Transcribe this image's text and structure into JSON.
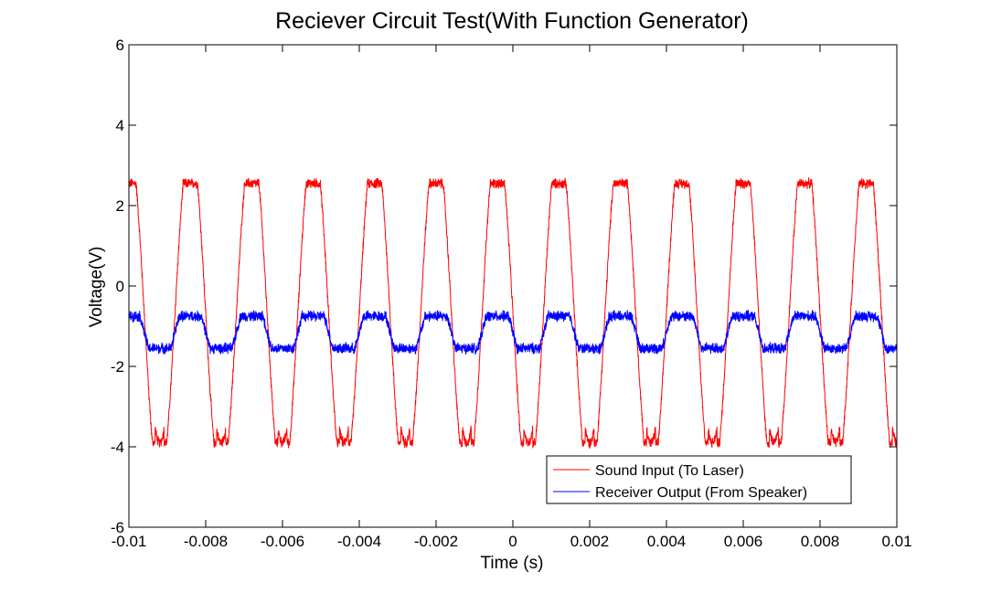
{
  "chart_data": {
    "type": "line",
    "title": "Reciever Circuit Test(With Function Generator)",
    "xlabel": "Time (s)",
    "ylabel": "Voltage(V)",
    "xlim": [
      -0.01,
      0.01
    ],
    "ylim": [
      -6,
      6
    ],
    "x_ticks": [
      "-0.01",
      "-0.008",
      "-0.006",
      "-0.004",
      "-0.002",
      "0",
      "0.002",
      "0.004",
      "0.006",
      "0.008",
      "0.01"
    ],
    "y_ticks": [
      "-6",
      "-4",
      "-2",
      "0",
      "2",
      "4",
      "6"
    ],
    "grid": false,
    "legend_position": "bottom-right",
    "series": [
      {
        "name": "Sound Input (To Laser)",
        "color": "#ff0000",
        "period_s": 0.0016,
        "high_v": 2.55,
        "low_v": -3.9,
        "noise_v": 0.15,
        "waveform": "clipped-sine"
      },
      {
        "name": "Receiver Output (From Speaker)",
        "color": "#0000ff",
        "period_s": 0.0016,
        "high_v": -0.75,
        "low_v": -1.55,
        "noise_v": 0.16,
        "waveform": "square-ish"
      }
    ]
  }
}
